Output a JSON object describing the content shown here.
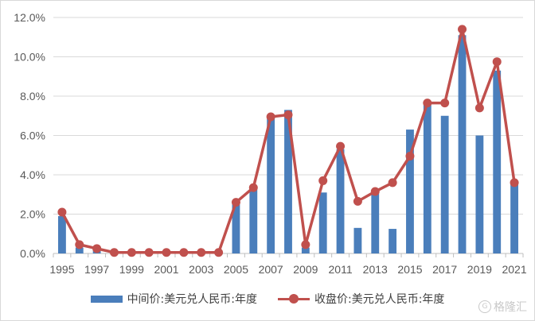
{
  "chart_data": {
    "type": "bar+line",
    "x": [
      1995,
      1996,
      1997,
      1998,
      1999,
      2000,
      2001,
      2002,
      2003,
      2004,
      2005,
      2006,
      2007,
      2008,
      2009,
      2010,
      2011,
      2012,
      2013,
      2014,
      2015,
      2016,
      2017,
      2018,
      2019,
      2020,
      2021
    ],
    "x_tick_labels": [
      "1995",
      "1997",
      "1999",
      "2001",
      "2003",
      "2005",
      "2007",
      "2009",
      "2011",
      "2013",
      "2015",
      "2017",
      "2019",
      "2021"
    ],
    "y_tick_labels": [
      "0.0%",
      "2.0%",
      "4.0%",
      "6.0%",
      "8.0%",
      "10.0%",
      "12.0%"
    ],
    "ylim": [
      0,
      12
    ],
    "grid": true,
    "legend_position": "bottom",
    "series": [
      {
        "name": "中间价:美元兑人民币:年度",
        "kind": "bar",
        "color": "#4a7ebb",
        "values": [
          1.9,
          0.3,
          0.2,
          0.05,
          0.05,
          0.05,
          0.05,
          0.05,
          0.05,
          0.05,
          2.5,
          3.3,
          6.9,
          7.3,
          0.3,
          3.1,
          5.3,
          1.3,
          3.1,
          1.25,
          6.3,
          7.6,
          7.0,
          11.1,
          6.0,
          9.3,
          3.6
        ]
      },
      {
        "name": "收盘价:美元兑人民币:年度",
        "kind": "line",
        "color": "#c0504d",
        "values": [
          2.1,
          0.45,
          0.25,
          0.05,
          0.05,
          0.05,
          0.05,
          0.05,
          0.05,
          0.05,
          2.6,
          3.35,
          6.95,
          7.05,
          0.45,
          3.7,
          5.45,
          2.65,
          3.15,
          3.6,
          4.95,
          7.65,
          7.65,
          11.4,
          7.4,
          9.75,
          3.6
        ]
      }
    ]
  },
  "legend": {
    "bar_label": "中间价:美元兑人民币:年度",
    "line_label": "收盘价:美元兑人民币:年度"
  },
  "watermark": {
    "logo_glyph": "G",
    "text": "格隆汇"
  }
}
